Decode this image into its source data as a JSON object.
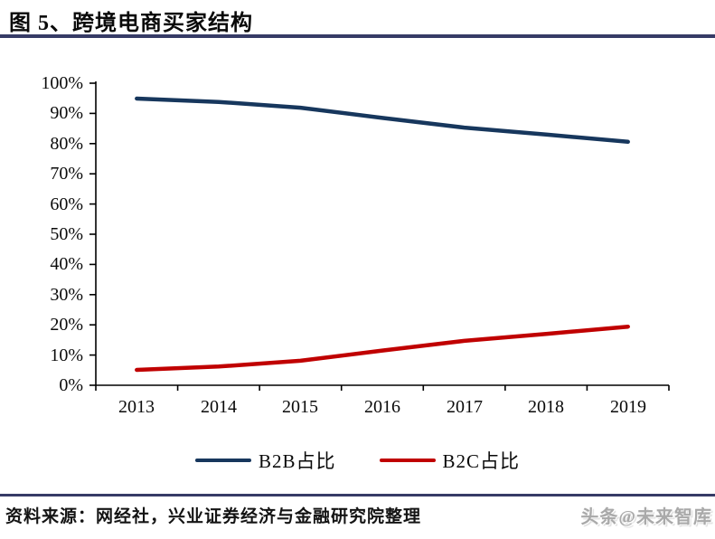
{
  "header": {
    "title": "图 5、跨境电商买家结构"
  },
  "chart_data": {
    "type": "line",
    "title": "图 5、跨境电商买家结构",
    "categories": [
      "2013",
      "2014",
      "2015",
      "2016",
      "2017",
      "2018",
      "2019"
    ],
    "series": [
      {
        "name": "B2B占比",
        "color": "#17375D",
        "values": [
          94.9,
          93.8,
          91.9,
          88.5,
          85.3,
          83.0,
          80.6
        ]
      },
      {
        "name": "B2C占比",
        "color": "#C00000",
        "values": [
          5.1,
          6.2,
          8.1,
          11.5,
          14.7,
          17.0,
          19.4
        ]
      }
    ],
    "xlabel": "",
    "ylabel": "",
    "ylim": [
      0,
      100
    ],
    "ytick_step": 10,
    "ytick_labels": [
      "100%",
      "90%",
      "80%",
      "70%",
      "60%",
      "50%",
      "40%",
      "30%",
      "20%",
      "10%",
      "0%"
    ],
    "grid": false,
    "legend_position": "bottom",
    "axis_color": "#000000"
  },
  "footer": {
    "source": "资料来源：网经社，兴业证券经济与金融研究院整理",
    "watermark": "头条@未来智库"
  }
}
